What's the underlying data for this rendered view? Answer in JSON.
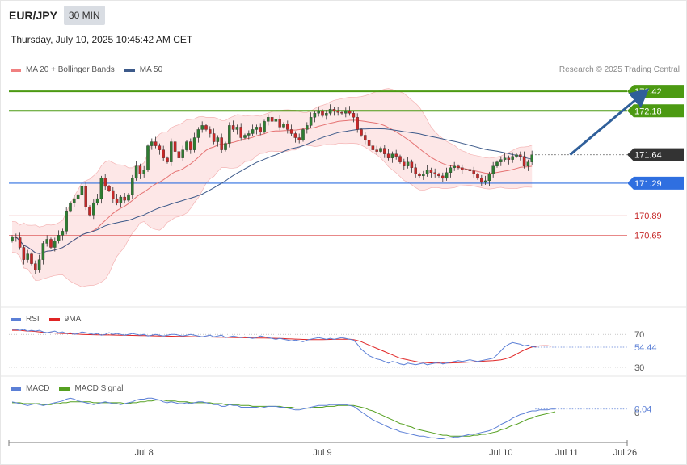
{
  "header": {
    "symbol": "EUR/JPY",
    "timeframe": "30 MIN",
    "datetime": "Thursday, July 10, 2025 10:45:42 AM CET",
    "credit": "Research © 2025 Trading Central"
  },
  "colors": {
    "bullish": "#2e7d32",
    "bearish": "#c62828",
    "band_fill": "#fde3e3",
    "ma20": "#e57373",
    "ma50": "#3d5a8a",
    "resistance": "#4c9a12",
    "support": "#2f6fe0",
    "weak_level": "#e06060",
    "arrow": "#2f5f9a",
    "current": "#333333",
    "rsi": "#5b7fd6",
    "rsi_ma": "#e02424",
    "macd": "#5b7fd6",
    "macd_signal": "#55a020"
  },
  "legends": {
    "main": [
      {
        "label": "MA 20 + Bollinger Bands",
        "color": "#f08080"
      },
      {
        "label": "MA 50",
        "color": "#3d5a8a"
      }
    ],
    "rsi": [
      {
        "label": "RSI",
        "color": "#5b7fd6"
      },
      {
        "label": "9MA",
        "color": "#e02424"
      }
    ],
    "macd": [
      {
        "label": "MACD",
        "color": "#5b7fd6"
      },
      {
        "label": "MACD Signal",
        "color": "#55a020"
      }
    ]
  },
  "chart_data": [
    {
      "type": "candlestick",
      "title": "EUR/JPY 30 MIN",
      "ylim": [
        169.85,
        172.55
      ],
      "x_labels": [
        {
          "label": "Jul 8",
          "index": 34
        },
        {
          "label": "Jul 9",
          "index": 80
        },
        {
          "label": "Jul 10",
          "index": 126
        },
        {
          "label": "Jul 11",
          "index": 143
        },
        {
          "label": "Jul 26",
          "index": 158
        }
      ],
      "levels": [
        {
          "value": 172.42,
          "label": "172.42",
          "kind": "resistance"
        },
        {
          "value": 172.18,
          "label": "172.18",
          "kind": "resistance"
        },
        {
          "value": 171.64,
          "label": "171.64",
          "kind": "current"
        },
        {
          "value": 171.29,
          "label": "171.29",
          "kind": "support"
        },
        {
          "value": 170.89,
          "label": "170.89",
          "kind": "weak"
        },
        {
          "value": 170.65,
          "label": "170.65",
          "kind": "weak"
        }
      ],
      "arrow": {
        "from": {
          "index": 143,
          "value": 171.64
        },
        "to": {
          "index": 162,
          "value": 172.4
        }
      },
      "close": [
        170.63,
        170.62,
        170.5,
        170.35,
        170.42,
        170.3,
        170.22,
        170.35,
        170.55,
        170.6,
        170.5,
        170.58,
        170.65,
        170.7,
        170.95,
        171.05,
        171.1,
        171.15,
        171.25,
        171.0,
        170.9,
        171.05,
        171.1,
        171.35,
        171.25,
        171.2,
        171.1,
        171.05,
        171.12,
        171.08,
        171.15,
        171.35,
        171.5,
        171.4,
        171.45,
        171.75,
        171.8,
        171.75,
        171.7,
        171.6,
        171.55,
        171.8,
        171.68,
        171.6,
        171.7,
        171.8,
        171.7,
        171.85,
        171.95,
        172.0,
        171.95,
        171.9,
        171.8,
        171.85,
        171.7,
        171.78,
        172.0,
        171.95,
        171.98,
        171.85,
        171.88,
        171.9,
        171.95,
        171.98,
        171.92,
        172.05,
        172.1,
        172.05,
        172.08,
        171.98,
        172.02,
        171.95,
        171.9,
        171.85,
        171.82,
        171.95,
        172.0,
        172.1,
        172.15,
        172.18,
        172.12,
        172.15,
        172.2,
        172.18,
        172.16,
        172.15,
        172.18,
        172.15,
        172.1,
        171.95,
        171.88,
        171.82,
        171.75,
        171.7,
        171.68,
        171.72,
        171.65,
        171.6,
        171.65,
        171.62,
        171.55,
        171.5,
        171.55,
        171.48,
        171.4,
        171.38,
        171.4,
        171.45,
        171.42,
        171.4,
        171.38,
        171.35,
        171.42,
        171.48,
        171.5,
        171.48,
        171.45,
        171.46,
        171.44,
        171.4,
        171.35,
        171.3,
        171.32,
        171.4,
        171.5,
        171.55,
        171.58,
        171.6,
        171.58,
        171.62,
        171.64,
        171.62,
        171.5,
        171.55,
        171.64
      ]
    },
    {
      "type": "line",
      "title": "RSI",
      "ylim": [
        25,
        78
      ],
      "levels": [
        70,
        30
      ],
      "last_value": 54.44,
      "series": [
        {
          "name": "RSI",
          "values": [
            76,
            76,
            75,
            76,
            74,
            75,
            74,
            75,
            73,
            72,
            73,
            74,
            72,
            73,
            71,
            72,
            70,
            71,
            73,
            72,
            71,
            70,
            71,
            69,
            70,
            72,
            70,
            71,
            70,
            69,
            70,
            71,
            70,
            69,
            70,
            68,
            69,
            70,
            69,
            68,
            69,
            70,
            70,
            69,
            68,
            69,
            70,
            69,
            68,
            67,
            68,
            69,
            67,
            68,
            69,
            66,
            67,
            68,
            67,
            66,
            67,
            66,
            65,
            66,
            68,
            67,
            66,
            65,
            64,
            65,
            64,
            63,
            62,
            63,
            62,
            61,
            63,
            64,
            65,
            66,
            65,
            64,
            65,
            64,
            65,
            66,
            65,
            64,
            63,
            58,
            52,
            48,
            44,
            42,
            40,
            39,
            37,
            35,
            37,
            36,
            34,
            33,
            35,
            34,
            33,
            34,
            35,
            33,
            34,
            35,
            36,
            34,
            35,
            36,
            37,
            38,
            37,
            38,
            39,
            38,
            37,
            38,
            39,
            40,
            41,
            45,
            50,
            55,
            58,
            60,
            59,
            58,
            56,
            57,
            55,
            54.44
          ]
        },
        {
          "name": "9MA",
          "values": [
            75,
            75,
            75,
            74.5,
            74,
            74,
            73.5,
            73,
            72.5,
            72,
            71.8,
            71.5,
            71.2,
            71,
            70.8,
            70.6,
            70.4,
            70.2,
            70,
            69.8,
            69.7,
            69.6,
            69.5,
            69.4,
            69.3,
            69.3,
            69.2,
            69.1,
            69,
            68.9,
            68.8,
            68.7,
            68.6,
            68.5,
            68.4,
            68.3,
            68.2,
            68.1,
            68,
            67.9,
            67.8,
            67.7,
            67.6,
            67.5,
            67.4,
            67.3,
            67.2,
            67.1,
            67,
            66.9,
            66.8,
            66.7,
            66.6,
            66.5,
            66.4,
            66.3,
            66.2,
            66.1,
            66,
            65.9,
            65.8,
            65.7,
            65.6,
            65.5,
            65.5,
            65.4,
            65.3,
            65.2,
            65.1,
            65,
            64.8,
            64.6,
            64.4,
            64.2,
            64,
            63.8,
            63.7,
            63.6,
            63.6,
            63.6,
            63.6,
            63.7,
            63.8,
            63.9,
            64,
            64.1,
            64.2,
            64,
            63.5,
            62.5,
            61,
            59,
            57,
            55,
            53,
            51,
            49,
            47,
            45,
            43,
            41,
            40,
            39,
            38,
            37,
            36,
            36,
            35.5,
            35.3,
            35.2,
            35.1,
            35,
            35,
            35.2,
            35.4,
            35.6,
            35.8,
            36,
            36.3,
            36.6,
            36.9,
            37.2,
            37.5,
            37.8,
            38.1,
            38.5,
            39,
            40,
            41.5,
            43.5,
            46,
            48.5,
            51,
            53,
            54.5,
            55.5,
            56,
            56.2,
            56.1,
            55.6
          ]
        }
      ]
    },
    {
      "type": "line",
      "title": "MACD",
      "ylim": [
        -0.33,
        0.19
      ],
      "levels": [
        0
      ],
      "zero_label": "0",
      "last_value": 0.04,
      "series": [
        {
          "name": "MACD",
          "values": [
            0.12,
            0.11,
            0.1,
            0.09,
            0.08,
            0.09,
            0.1,
            0.09,
            0.08,
            0.09,
            0.1,
            0.11,
            0.12,
            0.13,
            0.15,
            0.16,
            0.15,
            0.13,
            0.12,
            0.11,
            0.1,
            0.09,
            0.1,
            0.11,
            0.12,
            0.11,
            0.1,
            0.1,
            0.09,
            0.1,
            0.11,
            0.12,
            0.14,
            0.15,
            0.15,
            0.16,
            0.16,
            0.15,
            0.14,
            0.12,
            0.11,
            0.12,
            0.11,
            0.1,
            0.1,
            0.11,
            0.1,
            0.11,
            0.12,
            0.12,
            0.11,
            0.1,
            0.09,
            0.09,
            0.07,
            0.07,
            0.09,
            0.08,
            0.08,
            0.06,
            0.06,
            0.06,
            0.06,
            0.06,
            0.05,
            0.06,
            0.07,
            0.07,
            0.07,
            0.06,
            0.06,
            0.05,
            0.04,
            0.03,
            0.03,
            0.04,
            0.05,
            0.06,
            0.07,
            0.08,
            0.08,
            0.08,
            0.09,
            0.09,
            0.09,
            0.09,
            0.09,
            0.08,
            0.07,
            0.04,
            0.01,
            -0.02,
            -0.05,
            -0.08,
            -0.1,
            -0.12,
            -0.14,
            -0.16,
            -0.18,
            -0.19,
            -0.21,
            -0.22,
            -0.23,
            -0.24,
            -0.25,
            -0.26,
            -0.26,
            -0.27,
            -0.28,
            -0.28,
            -0.29,
            -0.29,
            -0.28,
            -0.28,
            -0.27,
            -0.27,
            -0.26,
            -0.25,
            -0.24,
            -0.24,
            -0.23,
            -0.22,
            -0.21,
            -0.2,
            -0.18,
            -0.16,
            -0.13,
            -0.11,
            -0.09,
            -0.06,
            -0.04,
            -0.02,
            -0.01,
            0.01,
            0.02,
            0.02,
            0.03,
            0.03,
            0.03,
            0.04,
            0.04
          ]
        },
        {
          "name": "MACD Signal",
          "values": [
            0.11,
            0.11,
            0.11,
            0.1,
            0.1,
            0.1,
            0.1,
            0.1,
            0.09,
            0.09,
            0.09,
            0.1,
            0.1,
            0.11,
            0.11,
            0.12,
            0.12,
            0.12,
            0.12,
            0.12,
            0.12,
            0.11,
            0.11,
            0.11,
            0.11,
            0.11,
            0.11,
            0.11,
            0.11,
            0.1,
            0.1,
            0.11,
            0.11,
            0.12,
            0.12,
            0.13,
            0.13,
            0.14,
            0.14,
            0.14,
            0.13,
            0.13,
            0.13,
            0.12,
            0.12,
            0.12,
            0.11,
            0.11,
            0.11,
            0.11,
            0.11,
            0.11,
            0.1,
            0.1,
            0.1,
            0.09,
            0.09,
            0.09,
            0.09,
            0.08,
            0.08,
            0.08,
            0.07,
            0.07,
            0.07,
            0.07,
            0.07,
            0.07,
            0.07,
            0.07,
            0.06,
            0.06,
            0.06,
            0.05,
            0.05,
            0.05,
            0.05,
            0.05,
            0.06,
            0.06,
            0.06,
            0.07,
            0.07,
            0.07,
            0.08,
            0.08,
            0.08,
            0.08,
            0.08,
            0.07,
            0.06,
            0.05,
            0.03,
            0.02,
            0.0,
            -0.02,
            -0.04,
            -0.06,
            -0.08,
            -0.1,
            -0.12,
            -0.13,
            -0.15,
            -0.16,
            -0.18,
            -0.19,
            -0.2,
            -0.21,
            -0.22,
            -0.23,
            -0.24,
            -0.25,
            -0.25,
            -0.26,
            -0.26,
            -0.26,
            -0.26,
            -0.26,
            -0.26,
            -0.25,
            -0.25,
            -0.24,
            -0.24,
            -0.23,
            -0.22,
            -0.21,
            -0.19,
            -0.18,
            -0.16,
            -0.14,
            -0.13,
            -0.11,
            -0.09,
            -0.07,
            -0.06,
            -0.04,
            -0.03,
            -0.02,
            -0.01,
            0.0,
            0.01
          ]
        }
      ]
    }
  ]
}
